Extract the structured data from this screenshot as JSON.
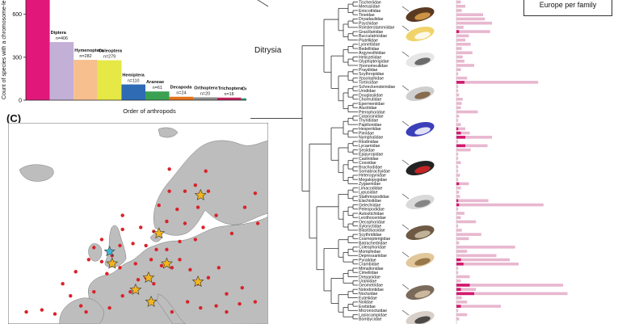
{
  "panel_c_label": "(C)",
  "ditrysia_label": "Ditrysia",
  "legend_text": "Europe per family",
  "chart_data": {
    "type": "bar",
    "xlabel": "Order of arthropods",
    "ylabel": "Count of species with a chromosome-le",
    "ylim": [
      0,
      700
    ],
    "yticks": [
      0,
      300,
      600
    ],
    "categories": [
      {
        "name": "",
        "n_label": "",
        "value": 1000,
        "color": "#e2177a"
      },
      {
        "name": "Diptera",
        "n_label": "n=406",
        "value": 406,
        "color": "#c3b0d7"
      },
      {
        "name": "Hymenoptera",
        "n_label": "n=282",
        "value": 282,
        "color": "#f7bf8e"
      },
      {
        "name": "Coleoptera",
        "n_label": "n=279",
        "value": 279,
        "color": "#e5e845"
      },
      {
        "name": "Hemiptera",
        "n_label": "n=110",
        "value": 110,
        "color": "#2e6bb4"
      },
      {
        "name": "Araneae",
        "n_label": "n=61",
        "value": 61,
        "color": "#3aa152"
      },
      {
        "name": "Decapoda",
        "n_label": "n=24",
        "value": 24,
        "color": "#e2731d"
      },
      {
        "name": "Orthoptera",
        "n_label": "n=20",
        "value": 20,
        "color": "#8c8c8c"
      },
      {
        "name": "Trichoptera",
        "n_label": "n=18",
        "value": 18,
        "color": "#c0235e"
      },
      {
        "name": "Odonata",
        "n_label": "n=13",
        "value": 13,
        "color": "#2a9b6a"
      }
    ]
  },
  "families": [
    "Tischeriidae",
    "Meessiidae",
    "Eriocottidae",
    "Tineidae",
    "Dryadaulidae",
    "Psychidae",
    "Roeslerstammiidae",
    "Gracillariidae",
    "Bucculatricidae",
    "Plutellidae",
    "Lyonetiidae",
    "Bedelliidae",
    "Argyresthiidae",
    "Heliozelidae",
    "Glyphipterigidae",
    "Yponomeutidae",
    "Praydidae",
    "Scythropiidae",
    "Ypsolophidae",
    "Tortricidae",
    "Schreckensteinidae",
    "Urodidae",
    "Douglasiidae",
    "Choreutidae",
    "Epermeniidae",
    "Alucitidae",
    "Pterophoridae",
    "Carposinidae",
    "Thyrididae",
    "Papilionidae",
    "Hesperiidae",
    "Pieridae",
    "Nymphalidae",
    "Riodinidae",
    "Lycaenidae",
    "Sesiidae",
    "Epipyropidae",
    "Castniidae",
    "Cossidae",
    "Brachodidae",
    "Somabrachyidae",
    "Heterogynidae",
    "Megalopygidae",
    "Zygaenidae",
    "Limacodidae",
    "Lypusidae",
    "Stathmopodidae",
    "Elachistidae",
    "Gelechiidae",
    "Peleopodidae",
    "Autostichidae",
    "Lecithoceridae",
    "Oecophoridae",
    "Xyloryctidae",
    "Blastobasidae",
    "Scythrididae",
    "Cosmopterigidae",
    "Batrachedridae",
    "Coleophoridae",
    "Momphidae",
    "Depressariidae",
    "Pyralidae",
    "Crambidae",
    "Mimallonidae",
    "Cimeliidae",
    "Drepanidae",
    "Uraniidae",
    "Geometridae",
    "Notodontidae",
    "Noctuidae",
    "Euteliidae",
    "Nolidae",
    "Erebidae",
    "Micronoctuidae",
    "Lasiocampidae",
    "Bombycidae"
  ],
  "family_bars": [
    [
      0.05,
      0.0
    ],
    [
      0.1,
      0.0
    ],
    [
      0.06,
      0.0
    ],
    [
      0.3,
      0.0
    ],
    [
      0.32,
      0.0
    ],
    [
      0.4,
      0.0
    ],
    [
      0.08,
      0.0
    ],
    [
      0.38,
      0.03
    ],
    [
      0.14,
      0.0
    ],
    [
      0.1,
      0.0
    ],
    [
      0.16,
      0.0
    ],
    [
      0.06,
      0.0
    ],
    [
      0.18,
      0.0
    ],
    [
      0.07,
      0.0
    ],
    [
      0.09,
      0.0
    ],
    [
      0.2,
      0.0
    ],
    [
      0.05,
      0.0
    ],
    [
      0.02,
      0.0
    ],
    [
      0.12,
      0.0
    ],
    [
      0.92,
      0.09
    ],
    [
      0.02,
      0.0
    ],
    [
      0.02,
      0.0
    ],
    [
      0.03,
      0.0
    ],
    [
      0.07,
      0.0
    ],
    [
      0.06,
      0.0
    ],
    [
      0.05,
      0.0
    ],
    [
      0.24,
      0.0
    ],
    [
      0.03,
      0.0
    ],
    [
      0.02,
      0.0
    ],
    [
      0.05,
      0.0
    ],
    [
      0.1,
      0.02
    ],
    [
      0.15,
      0.05
    ],
    [
      0.4,
      0.1
    ],
    [
      0.02,
      0.0
    ],
    [
      0.35,
      0.1
    ],
    [
      0.16,
      0.0
    ],
    [
      0.02,
      0.0
    ],
    [
      0.02,
      0.0
    ],
    [
      0.05,
      0.0
    ],
    [
      0.02,
      0.0
    ],
    [
      0.02,
      0.0
    ],
    [
      0.04,
      0.0
    ],
    [
      0.02,
      0.0
    ],
    [
      0.14,
      0.03
    ],
    [
      0.05,
      0.0
    ],
    [
      0.03,
      0.0
    ],
    [
      0.04,
      0.0
    ],
    [
      0.36,
      0.02
    ],
    [
      0.98,
      0.03
    ],
    [
      0.02,
      0.0
    ],
    [
      0.09,
      0.0
    ],
    [
      0.05,
      0.0
    ],
    [
      0.22,
      0.0
    ],
    [
      0.02,
      0.0
    ],
    [
      0.06,
      0.0
    ],
    [
      0.28,
      0.0
    ],
    [
      0.14,
      0.0
    ],
    [
      0.03,
      0.0
    ],
    [
      0.66,
      0.0
    ],
    [
      0.12,
      0.0
    ],
    [
      0.45,
      0.0
    ],
    [
      0.6,
      0.05
    ],
    [
      0.7,
      0.08
    ],
    [
      0.02,
      0.0
    ],
    [
      0.02,
      0.0
    ],
    [
      0.15,
      0.0
    ],
    [
      0.05,
      0.0
    ],
    [
      1.2,
      0.15
    ],
    [
      0.22,
      0.05
    ],
    [
      1.25,
      0.2
    ],
    [
      0.06,
      0.0
    ],
    [
      0.12,
      0.0
    ],
    [
      0.5,
      0.05
    ],
    [
      0.02,
      0.0
    ],
    [
      0.12,
      0.0
    ],
    [
      0.03,
      0.0
    ]
  ],
  "map_points": {
    "red": [
      [
        0.07,
        0.94
      ],
      [
        0.44,
        0.46
      ],
      [
        0.62,
        0.23
      ],
      [
        0.58,
        0.41
      ],
      [
        0.55,
        0.68
      ],
      [
        0.38,
        0.75
      ],
      [
        0.33,
        0.84
      ],
      [
        0.21,
        0.8
      ],
      [
        0.28,
        0.91
      ],
      [
        0.3,
        0.94
      ],
      [
        0.18,
        0.95
      ],
      [
        0.39,
        0.92
      ],
      [
        0.44,
        0.86
      ],
      [
        0.47,
        0.84
      ],
      [
        0.5,
        0.78
      ],
      [
        0.53,
        0.77
      ],
      [
        0.56,
        0.8
      ],
      [
        0.59,
        0.71
      ],
      [
        0.63,
        0.72
      ],
      [
        0.66,
        0.68
      ],
      [
        0.7,
        0.73
      ],
      [
        0.73,
        0.8
      ],
      [
        0.77,
        0.77
      ],
      [
        0.81,
        0.72
      ],
      [
        0.84,
        0.85
      ],
      [
        0.9,
        0.82
      ],
      [
        0.49,
        0.7
      ],
      [
        0.43,
        0.72
      ],
      [
        0.4,
        0.66
      ],
      [
        0.43,
        0.61
      ],
      [
        0.48,
        0.6
      ],
      [
        0.53,
        0.61
      ],
      [
        0.57,
        0.63
      ],
      [
        0.61,
        0.63
      ],
      [
        0.66,
        0.59
      ],
      [
        0.72,
        0.58
      ],
      [
        0.75,
        0.52
      ],
      [
        0.68,
        0.5
      ],
      [
        0.65,
        0.43
      ],
      [
        0.61,
        0.49
      ],
      [
        0.56,
        0.54
      ],
      [
        0.51,
        0.52
      ],
      [
        0.36,
        0.58
      ],
      [
        0.33,
        0.62
      ],
      [
        0.31,
        0.68
      ],
      [
        0.36,
        0.69
      ],
      [
        0.26,
        0.74
      ],
      [
        0.24,
        0.86
      ],
      [
        0.13,
        0.93
      ],
      [
        0.63,
        0.94
      ],
      [
        0.69,
        0.89
      ],
      [
        0.74,
        0.92
      ],
      [
        0.8,
        0.91
      ],
      [
        0.84,
        0.94
      ],
      [
        0.89,
        0.9
      ],
      [
        0.95,
        0.89
      ],
      [
        0.73,
        0.42
      ],
      [
        0.8,
        0.46
      ],
      [
        0.86,
        0.55
      ],
      [
        0.62,
        0.34
      ],
      [
        0.68,
        0.34
      ],
      [
        0.72,
        0.31
      ],
      [
        0.77,
        0.34
      ],
      [
        0.91,
        0.42
      ],
      [
        0.95,
        0.35
      ],
      [
        0.96,
        0.5
      ],
      [
        0.76,
        0.24
      ],
      [
        0.44,
        0.53
      ]
    ],
    "gold": [
      [
        0.74,
        0.36
      ],
      [
        0.58,
        0.55
      ],
      [
        0.4,
        0.7
      ],
      [
        0.54,
        0.77
      ],
      [
        0.61,
        0.7
      ],
      [
        0.73,
        0.79
      ],
      [
        0.49,
        0.83
      ],
      [
        0.55,
        0.89
      ]
    ],
    "blue": [
      [
        0.39,
        0.64
      ]
    ]
  }
}
